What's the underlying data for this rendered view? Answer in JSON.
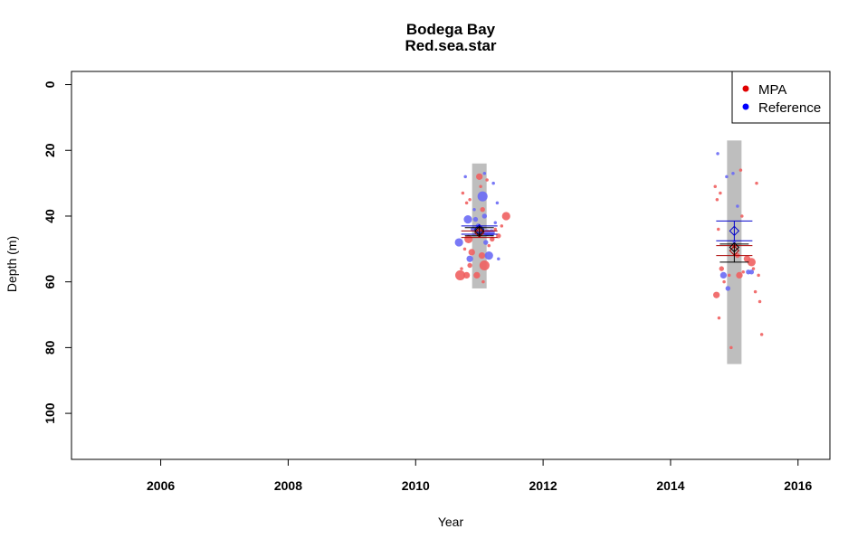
{
  "chart_data": {
    "type": "scatter",
    "title": "Bodega Bay",
    "subtitle": "Red.sea.star",
    "xlabel": "Year",
    "ylabel": "Depth (m)",
    "xlim": [
      2004.6,
      2016.5
    ],
    "ylim": [
      114,
      -4
    ],
    "y_reversed": true,
    "x_ticks": [
      2006,
      2008,
      2010,
      2012,
      2014,
      2016
    ],
    "x_tick_labels": [
      "2006",
      "2008",
      "2010",
      "2012",
      "2014",
      "2016"
    ],
    "y_ticks": [
      0,
      20,
      40,
      60,
      80,
      100
    ],
    "y_tick_labels": [
      "0",
      "20",
      "40",
      "60",
      "80",
      "100"
    ],
    "legend": {
      "position": "top-right",
      "entries": [
        {
          "label": "MPA",
          "color": "#e00000"
        },
        {
          "label": "Reference",
          "color": "#0000ff"
        }
      ]
    },
    "colors": {
      "mpa": "#f06060",
      "reference": "#6a6af5",
      "range_bar": "#bebebe",
      "mpa_line": "#aa0000",
      "ref_line": "#0000cc",
      "overall": "#000000"
    },
    "depth_ranges": [
      {
        "year": 2011,
        "min": 24,
        "max": 62
      },
      {
        "year": 2015,
        "min": 17,
        "max": 85
      }
    ],
    "summaries": [
      {
        "year": 2011,
        "group": "Reference",
        "mean": 44,
        "ci": [
          43,
          45.5
        ]
      },
      {
        "year": 2011,
        "group": "MPA",
        "mean": 45,
        "ci": [
          44.5,
          46.5
        ]
      },
      {
        "year": 2011,
        "group": "All",
        "mean": 44.5,
        "ci": [
          43.5,
          46
        ]
      },
      {
        "year": 2015,
        "group": "Reference",
        "mean": 44.5,
        "ci": [
          41.5,
          47.5
        ]
      },
      {
        "year": 2015,
        "group": "MPA",
        "mean": 50.5,
        "ci": [
          49,
          52
        ]
      },
      {
        "year": 2015,
        "group": "All",
        "mean": 49.5,
        "ci": [
          48.5,
          54
        ]
      }
    ],
    "series": [
      {
        "name": "MPA",
        "points": [
          {
            "x": 2010.7,
            "y": 58,
            "s": 5
          },
          {
            "x": 2010.8,
            "y": 58,
            "s": 3
          },
          {
            "x": 2010.72,
            "y": 56,
            "s": 1
          },
          {
            "x": 2010.85,
            "y": 55,
            "s": 2
          },
          {
            "x": 2010.88,
            "y": 51,
            "s": 3
          },
          {
            "x": 2010.83,
            "y": 47,
            "s": 4
          },
          {
            "x": 2010.77,
            "y": 50,
            "s": 1
          },
          {
            "x": 2010.8,
            "y": 36,
            "s": 1
          },
          {
            "x": 2010.74,
            "y": 33,
            "s": 1
          },
          {
            "x": 2010.85,
            "y": 35,
            "s": 1
          },
          {
            "x": 2010.96,
            "y": 58,
            "s": 3
          },
          {
            "x": 2011.0,
            "y": 28,
            "s": 3
          },
          {
            "x": 2011.02,
            "y": 31,
            "s": 1
          },
          {
            "x": 2011.05,
            "y": 38,
            "s": 2
          },
          {
            "x": 2011.08,
            "y": 55,
            "s": 5
          },
          {
            "x": 2011.04,
            "y": 52,
            "s": 3
          },
          {
            "x": 2011.1,
            "y": 45,
            "s": 2
          },
          {
            "x": 2011.0,
            "y": 43,
            "s": 1
          },
          {
            "x": 2011.15,
            "y": 49,
            "s": 1
          },
          {
            "x": 2011.2,
            "y": 47,
            "s": 2
          },
          {
            "x": 2011.25,
            "y": 44,
            "s": 1
          },
          {
            "x": 2011.3,
            "y": 46,
            "s": 2
          },
          {
            "x": 2011.42,
            "y": 40,
            "s": 4
          },
          {
            "x": 2011.35,
            "y": 43,
            "s": 1
          },
          {
            "x": 2011.12,
            "y": 29,
            "s": 1
          },
          {
            "x": 2011.06,
            "y": 60,
            "s": 1
          },
          {
            "x": 2014.7,
            "y": 31,
            "s": 1
          },
          {
            "x": 2014.73,
            "y": 35,
            "s": 1
          },
          {
            "x": 2014.78,
            "y": 33,
            "s": 1
          },
          {
            "x": 2014.75,
            "y": 44,
            "s": 1
          },
          {
            "x": 2014.8,
            "y": 56,
            "s": 2
          },
          {
            "x": 2014.84,
            "y": 60,
            "s": 1
          },
          {
            "x": 2014.72,
            "y": 64,
            "s": 3
          },
          {
            "x": 2014.76,
            "y": 71,
            "s": 1
          },
          {
            "x": 2014.92,
            "y": 58,
            "s": 1
          },
          {
            "x": 2014.95,
            "y": 80,
            "s": 1
          },
          {
            "x": 2015.0,
            "y": 49,
            "s": 2
          },
          {
            "x": 2015.05,
            "y": 52,
            "s": 2
          },
          {
            "x": 2015.1,
            "y": 26,
            "s": 1
          },
          {
            "x": 2015.08,
            "y": 58,
            "s": 3
          },
          {
            "x": 2015.14,
            "y": 57,
            "s": 1
          },
          {
            "x": 2015.2,
            "y": 53,
            "s": 3
          },
          {
            "x": 2015.27,
            "y": 54,
            "s": 4
          },
          {
            "x": 2015.3,
            "y": 56,
            "s": 1
          },
          {
            "x": 2015.35,
            "y": 30,
            "s": 1
          },
          {
            "x": 2015.38,
            "y": 58,
            "s": 1
          },
          {
            "x": 2015.33,
            "y": 63,
            "s": 1
          },
          {
            "x": 2015.4,
            "y": 66,
            "s": 1
          },
          {
            "x": 2015.43,
            "y": 76,
            "s": 1
          },
          {
            "x": 2015.12,
            "y": 40,
            "s": 1
          }
        ]
      },
      {
        "name": "Reference",
        "points": [
          {
            "x": 2010.68,
            "y": 48,
            "s": 4
          },
          {
            "x": 2010.82,
            "y": 41,
            "s": 4
          },
          {
            "x": 2010.78,
            "y": 28,
            "s": 1
          },
          {
            "x": 2010.85,
            "y": 53,
            "s": 3
          },
          {
            "x": 2010.9,
            "y": 44,
            "s": 2
          },
          {
            "x": 2010.94,
            "y": 41,
            "s": 2
          },
          {
            "x": 2010.98,
            "y": 43,
            "s": 2
          },
          {
            "x": 2011.05,
            "y": 34,
            "s": 5
          },
          {
            "x": 2011.08,
            "y": 40,
            "s": 2
          },
          {
            "x": 2011.1,
            "y": 48,
            "s": 2
          },
          {
            "x": 2011.12,
            "y": 45,
            "s": 3
          },
          {
            "x": 2011.15,
            "y": 52,
            "s": 4
          },
          {
            "x": 2011.19,
            "y": 45,
            "s": 3
          },
          {
            "x": 2011.22,
            "y": 30,
            "s": 1
          },
          {
            "x": 2011.28,
            "y": 36,
            "s": 1
          },
          {
            "x": 2011.3,
            "y": 53,
            "s": 1
          },
          {
            "x": 2011.25,
            "y": 42,
            "s": 1
          },
          {
            "x": 2011.08,
            "y": 27,
            "s": 1
          },
          {
            "x": 2010.92,
            "y": 38,
            "s": 1
          },
          {
            "x": 2014.74,
            "y": 21,
            "s": 1
          },
          {
            "x": 2014.83,
            "y": 58,
            "s": 3
          },
          {
            "x": 2014.9,
            "y": 62,
            "s": 2
          },
          {
            "x": 2014.88,
            "y": 28,
            "s": 1
          },
          {
            "x": 2014.98,
            "y": 27,
            "s": 1
          },
          {
            "x": 2015.0,
            "y": 48,
            "s": 1
          },
          {
            "x": 2015.22,
            "y": 57,
            "s": 2
          },
          {
            "x": 2015.27,
            "y": 57,
            "s": 2
          },
          {
            "x": 2015.05,
            "y": 37,
            "s": 1
          }
        ]
      }
    ]
  }
}
